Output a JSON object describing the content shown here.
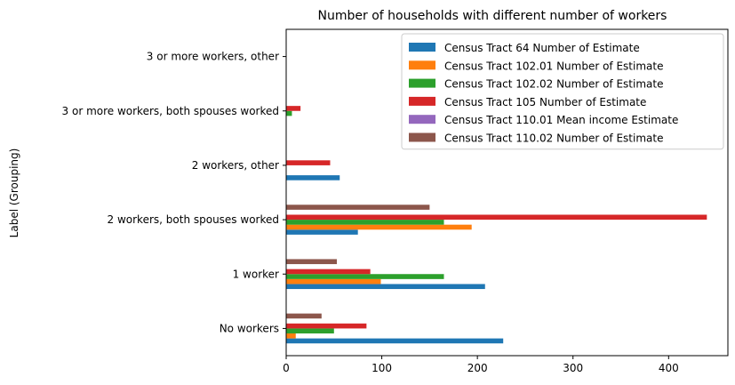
{
  "chart_data": {
    "type": "bar",
    "orientation": "horizontal",
    "title": "Number of households with different number of workers",
    "xlabel": "",
    "ylabel": "Label (Grouping)",
    "xlim": [
      0,
      462
    ],
    "xticks": [
      0,
      100,
      200,
      300,
      400
    ],
    "grid": false,
    "legend_position": "top-right",
    "categories": [
      "No workers",
      "1 worker",
      "2 workers, both spouses worked",
      "2 workers, other",
      "3 or more workers, both spouses worked",
      "3 or more workers, other"
    ],
    "series": [
      {
        "name": "Census Tract 64 Number of Estimate",
        "color": "#1f77b4",
        "values": [
          227,
          208,
          75,
          56,
          0,
          0
        ]
      },
      {
        "name": "Census Tract 102.01 Number of Estimate",
        "color": "#ff7f0e",
        "values": [
          10,
          99,
          194,
          0,
          0,
          0
        ]
      },
      {
        "name": "Census Tract 102.02 Number of Estimate",
        "color": "#2ca02c",
        "values": [
          50,
          165,
          165,
          0,
          6,
          0
        ]
      },
      {
        "name": "Census Tract 105 Number of Estimate",
        "color": "#d62728",
        "values": [
          84,
          88,
          440,
          46,
          15,
          0
        ]
      },
      {
        "name": "Census Tract 110.01 Mean income Estimate",
        "color": "#9467bd",
        "values": [
          0,
          0,
          0,
          0,
          0,
          0
        ]
      },
      {
        "name": "Census Tract 110.02 Number of Estimate",
        "color": "#8c564b",
        "values": [
          37,
          53,
          150,
          0,
          0,
          0
        ]
      }
    ]
  }
}
